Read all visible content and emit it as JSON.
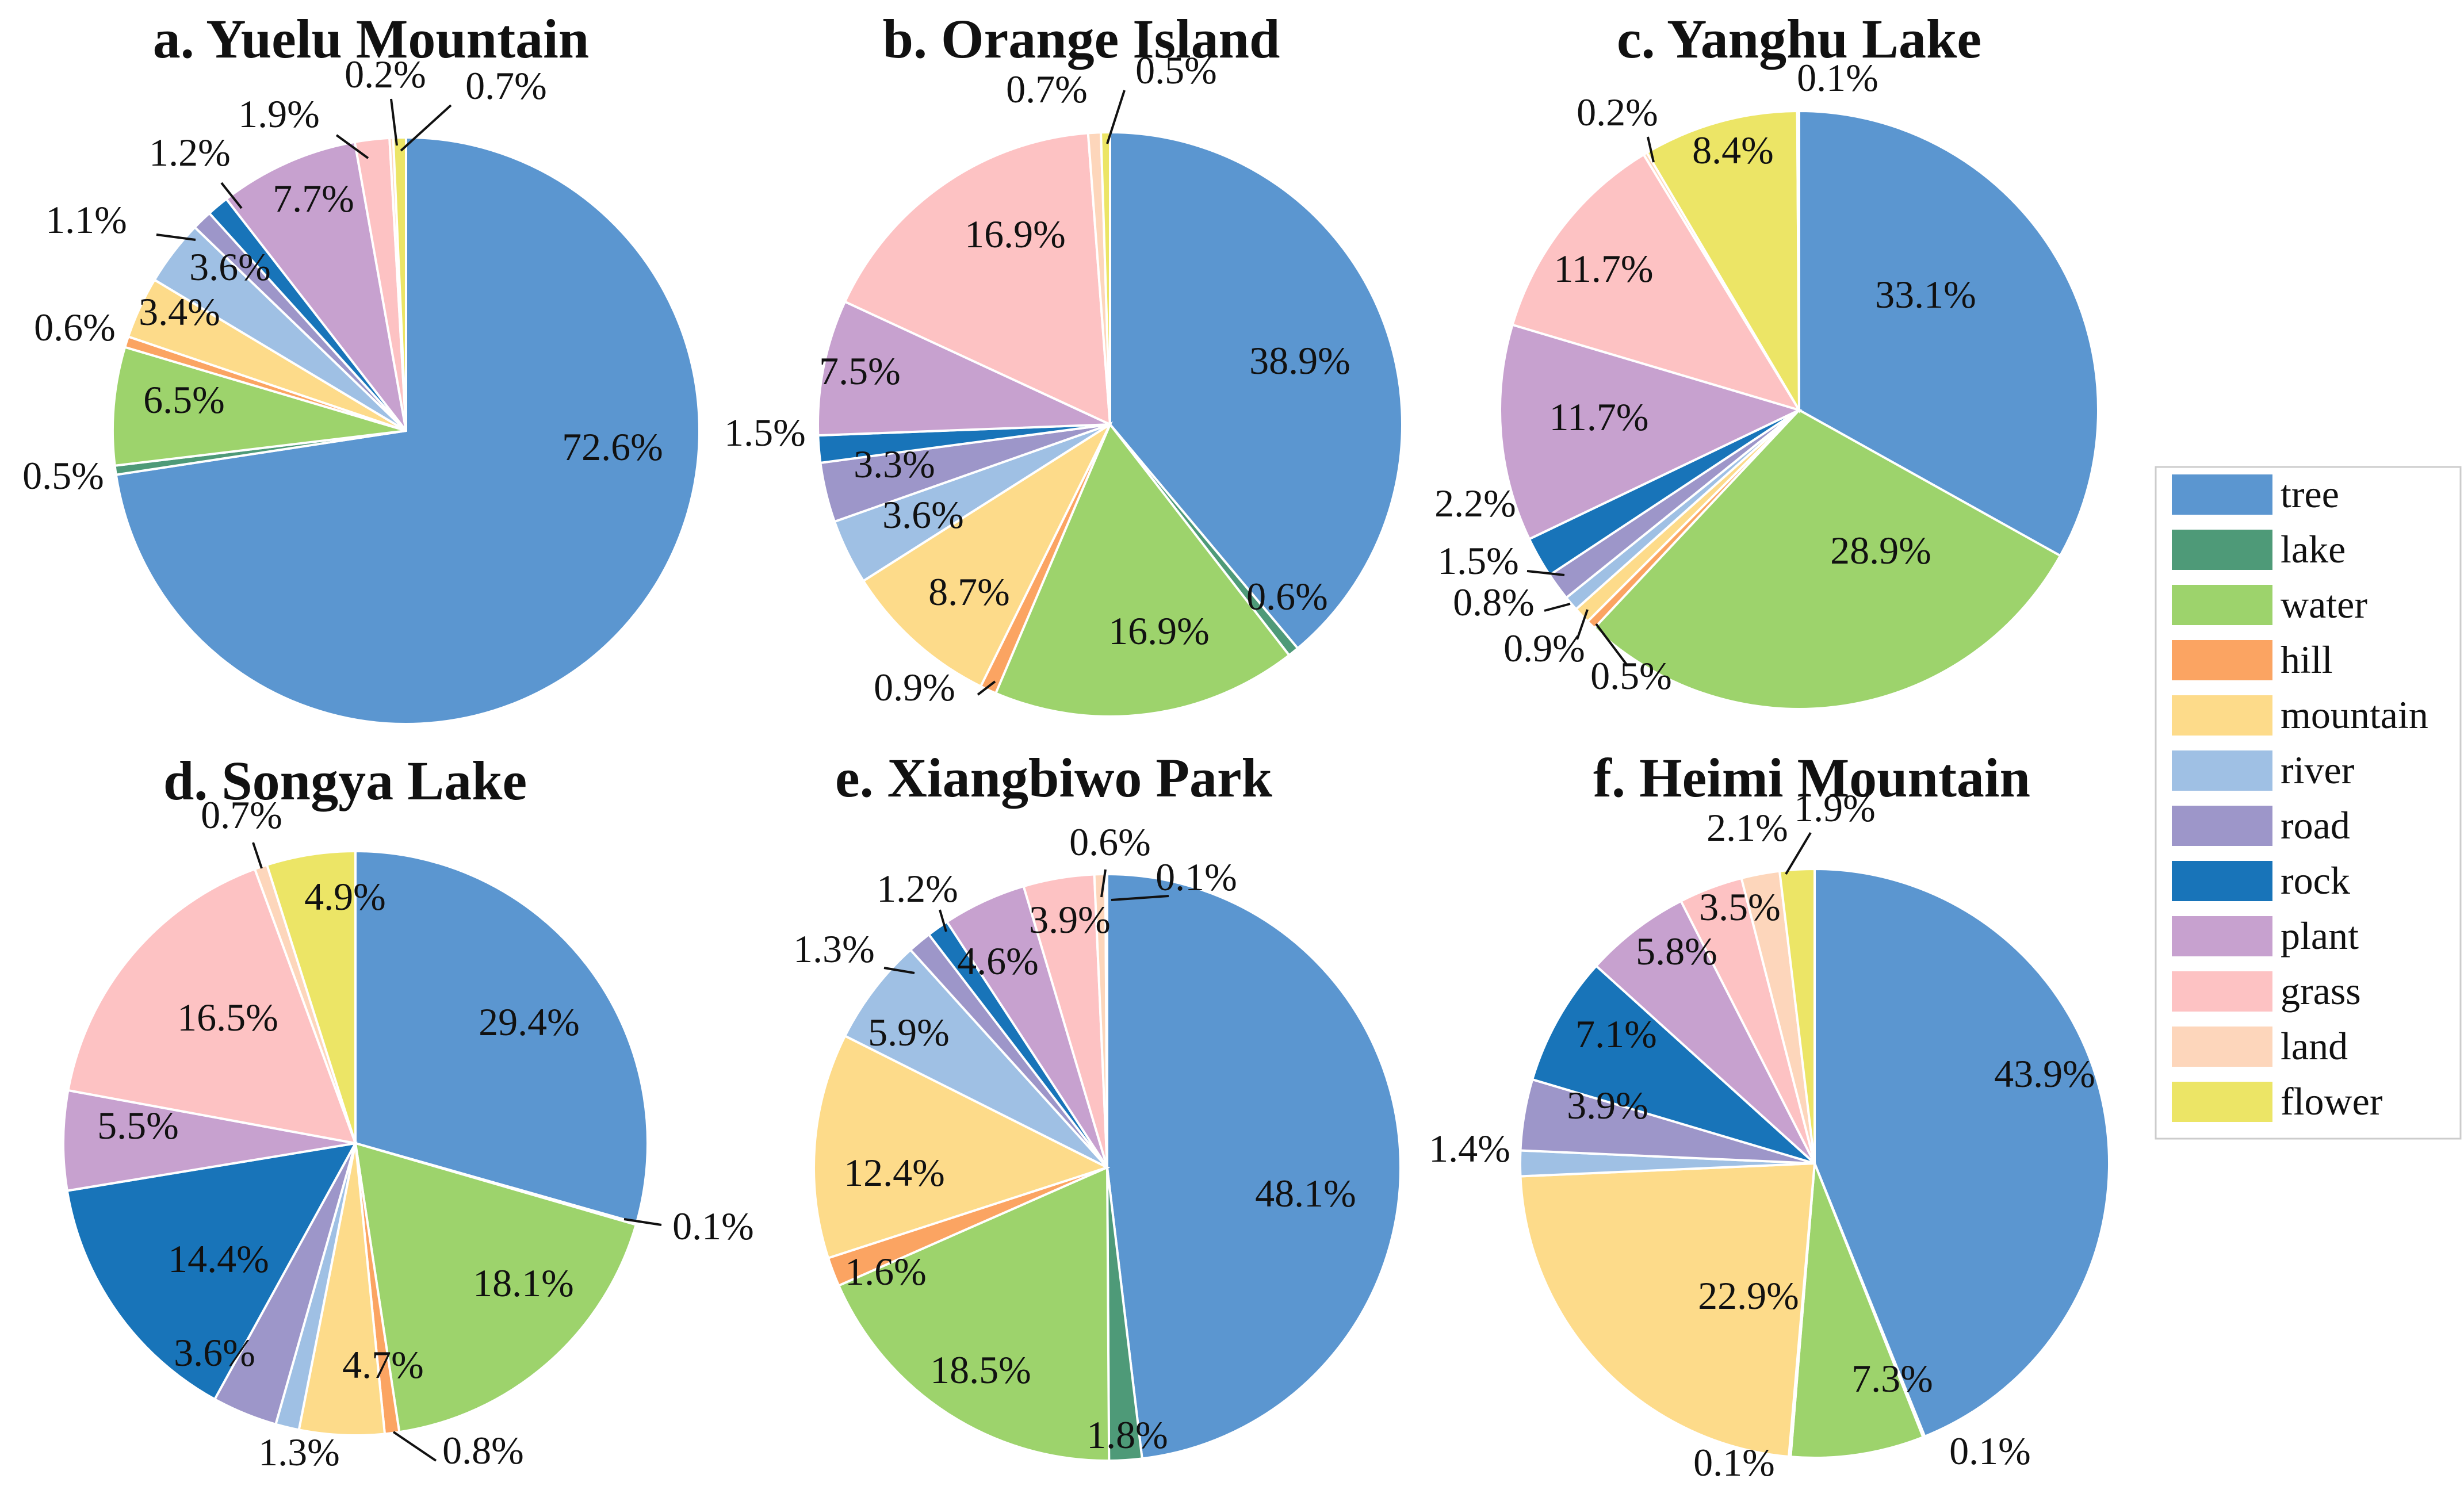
{
  "categories": [
    "tree",
    "lake",
    "water",
    "hill",
    "mountain",
    "river",
    "road",
    "rock",
    "plant",
    "grass",
    "land",
    "flower"
  ],
  "colors": {
    "tree": "#5b96d0",
    "lake": "#4e9a78",
    "water": "#9dd36c",
    "hill": "#fba462",
    "mountain": "#fddb8a",
    "river": "#9fc0e4",
    "road": "#9d96c9",
    "rock": "#1874b9",
    "plant": "#c7a1cf",
    "grass": "#fdc2c3",
    "land": "#fdd6bb",
    "flower": "#ece566"
  },
  "chart_data": [
    {
      "type": "pie",
      "title": "a. Yuelu Mountain",
      "slices": [
        {
          "category": "tree",
          "value": 72.6,
          "label": "72.6%"
        },
        {
          "category": "lake",
          "value": 0.5,
          "label": "0.5%"
        },
        {
          "category": "water",
          "value": 6.5,
          "label": "6.5%"
        },
        {
          "category": "hill",
          "value": 0.6,
          "label": "0.6%"
        },
        {
          "category": "mountain",
          "value": 3.4,
          "label": "3.4%"
        },
        {
          "category": "river",
          "value": 3.6,
          "label": "3.6%"
        },
        {
          "category": "road",
          "value": 1.1,
          "label": "1.1%"
        },
        {
          "category": "rock",
          "value": 1.2,
          "label": "1.2%"
        },
        {
          "category": "plant",
          "value": 7.7,
          "label": "7.7%"
        },
        {
          "category": "grass",
          "value": 1.9,
          "label": "1.9%"
        },
        {
          "category": "land",
          "value": 0.2,
          "label": "0.2%"
        },
        {
          "category": "flower",
          "value": 0.7,
          "label": "0.7%"
        }
      ]
    },
    {
      "type": "pie",
      "title": "b. Orange Island",
      "slices": [
        {
          "category": "tree",
          "value": 38.9,
          "label": "38.9%"
        },
        {
          "category": "lake",
          "value": 0.6,
          "label": "0.6%"
        },
        {
          "category": "water",
          "value": 16.9,
          "label": "16.9%"
        },
        {
          "category": "hill",
          "value": 0.9,
          "label": "0.9%"
        },
        {
          "category": "mountain",
          "value": 8.7,
          "label": "8.7%"
        },
        {
          "category": "river",
          "value": 3.6,
          "label": "3.6%"
        },
        {
          "category": "road",
          "value": 3.3,
          "label": "3.3%"
        },
        {
          "category": "rock",
          "value": 1.5,
          "label": "1.5%"
        },
        {
          "category": "plant",
          "value": 7.5,
          "label": "7.5%"
        },
        {
          "category": "grass",
          "value": 16.9,
          "label": "16.9%"
        },
        {
          "category": "land",
          "value": 0.7,
          "label": "0.7%"
        },
        {
          "category": "flower",
          "value": 0.5,
          "label": "0.5%"
        }
      ]
    },
    {
      "type": "pie",
      "title": "c. Yanghu Lake",
      "slices": [
        {
          "category": "tree",
          "value": 33.1,
          "label": "33.1%"
        },
        {
          "category": "water",
          "value": 28.9,
          "label": "28.9%"
        },
        {
          "category": "hill",
          "value": 0.5,
          "label": "0.5%"
        },
        {
          "category": "mountain",
          "value": 0.9,
          "label": "0.9%"
        },
        {
          "category": "river",
          "value": 0.8,
          "label": "0.8%"
        },
        {
          "category": "road",
          "value": 1.5,
          "label": "1.5%"
        },
        {
          "category": "rock",
          "value": 2.2,
          "label": "2.2%"
        },
        {
          "category": "plant",
          "value": 11.7,
          "label": "11.7%"
        },
        {
          "category": "grass",
          "value": 11.7,
          "label": "11.7%"
        },
        {
          "category": "land",
          "value": 0.2,
          "label": "0.2%"
        },
        {
          "category": "flower",
          "value": 8.4,
          "label": "8.4%"
        },
        {
          "category": "tree",
          "value": 0.1,
          "label": "0.1%"
        }
      ]
    },
    {
      "type": "pie",
      "title": "d. Songya Lake",
      "slices": [
        {
          "category": "tree",
          "value": 29.4,
          "label": "29.4%"
        },
        {
          "category": "lake",
          "value": 0.1,
          "label": "0.1%"
        },
        {
          "category": "water",
          "value": 18.1,
          "label": "18.1%"
        },
        {
          "category": "hill",
          "value": 0.8,
          "label": "0.8%"
        },
        {
          "category": "mountain",
          "value": 4.7,
          "label": "4.7%"
        },
        {
          "category": "river",
          "value": 1.3,
          "label": "1.3%"
        },
        {
          "category": "road",
          "value": 3.6,
          "label": "3.6%"
        },
        {
          "category": "rock",
          "value": 14.4,
          "label": "14.4%"
        },
        {
          "category": "plant",
          "value": 5.5,
          "label": "5.5%"
        },
        {
          "category": "grass",
          "value": 16.5,
          "label": "16.5%"
        },
        {
          "category": "land",
          "value": 0.7,
          "label": "0.7%"
        },
        {
          "category": "flower",
          "value": 4.9,
          "label": "4.9%"
        }
      ]
    },
    {
      "type": "pie",
      "title": "e. Xiangbiwo Park",
      "slices": [
        {
          "category": "tree",
          "value": 48.1,
          "label": "48.1%"
        },
        {
          "category": "lake",
          "value": 1.8,
          "label": "1.8%"
        },
        {
          "category": "water",
          "value": 18.5,
          "label": "18.5%"
        },
        {
          "category": "hill",
          "value": 1.6,
          "label": "1.6%"
        },
        {
          "category": "mountain",
          "value": 12.4,
          "label": "12.4%"
        },
        {
          "category": "river",
          "value": 5.9,
          "label": "5.9%"
        },
        {
          "category": "road",
          "value": 1.3,
          "label": "1.3%"
        },
        {
          "category": "rock",
          "value": 1.2,
          "label": "1.2%"
        },
        {
          "category": "plant",
          "value": 4.6,
          "label": "4.6%"
        },
        {
          "category": "grass",
          "value": 3.9,
          "label": "3.9%"
        },
        {
          "category": "land",
          "value": 0.6,
          "label": "0.6%"
        },
        {
          "category": "flower",
          "value": 0.1,
          "label": "0.1%"
        }
      ]
    },
    {
      "type": "pie",
      "title": "f. Heimi Mountain",
      "slices": [
        {
          "category": "tree",
          "value": 43.9,
          "label": "43.9%"
        },
        {
          "category": "lake",
          "value": 0.1,
          "label": "0.1%"
        },
        {
          "category": "water",
          "value": 7.3,
          "label": "7.3%"
        },
        {
          "category": "hill",
          "value": 0.1,
          "label": "0.1%"
        },
        {
          "category": "mountain",
          "value": 22.9,
          "label": "22.9%"
        },
        {
          "category": "river",
          "value": 1.4,
          "label": "1.4%"
        },
        {
          "category": "road",
          "value": 3.9,
          "label": "3.9%"
        },
        {
          "category": "rock",
          "value": 7.1,
          "label": "7.1%"
        },
        {
          "category": "plant",
          "value": 5.8,
          "label": "5.8%"
        },
        {
          "category": "grass",
          "value": 3.5,
          "label": "3.5%"
        },
        {
          "category": "land",
          "value": 2.1,
          "label": "2.1%"
        },
        {
          "category": "flower",
          "value": 1.9,
          "label": "1.9%"
        }
      ]
    }
  ],
  "legend": [
    {
      "label": "tree",
      "color": "#5b96d0"
    },
    {
      "label": "lake",
      "color": "#4e9a78"
    },
    {
      "label": "water",
      "color": "#9dd36c"
    },
    {
      "label": "hill",
      "color": "#fba462"
    },
    {
      "label": "mountain",
      "color": "#fddb8a"
    },
    {
      "label": "river",
      "color": "#9fc0e4"
    },
    {
      "label": "road",
      "color": "#9d96c9"
    },
    {
      "label": "rock",
      "color": "#1874b9"
    },
    {
      "label": "plant",
      "color": "#c7a1cf"
    },
    {
      "label": "grass",
      "color": "#fdc2c3"
    },
    {
      "label": "land",
      "color": "#fdd6bb"
    },
    {
      "label": "flower",
      "color": "#ece566"
    }
  ]
}
